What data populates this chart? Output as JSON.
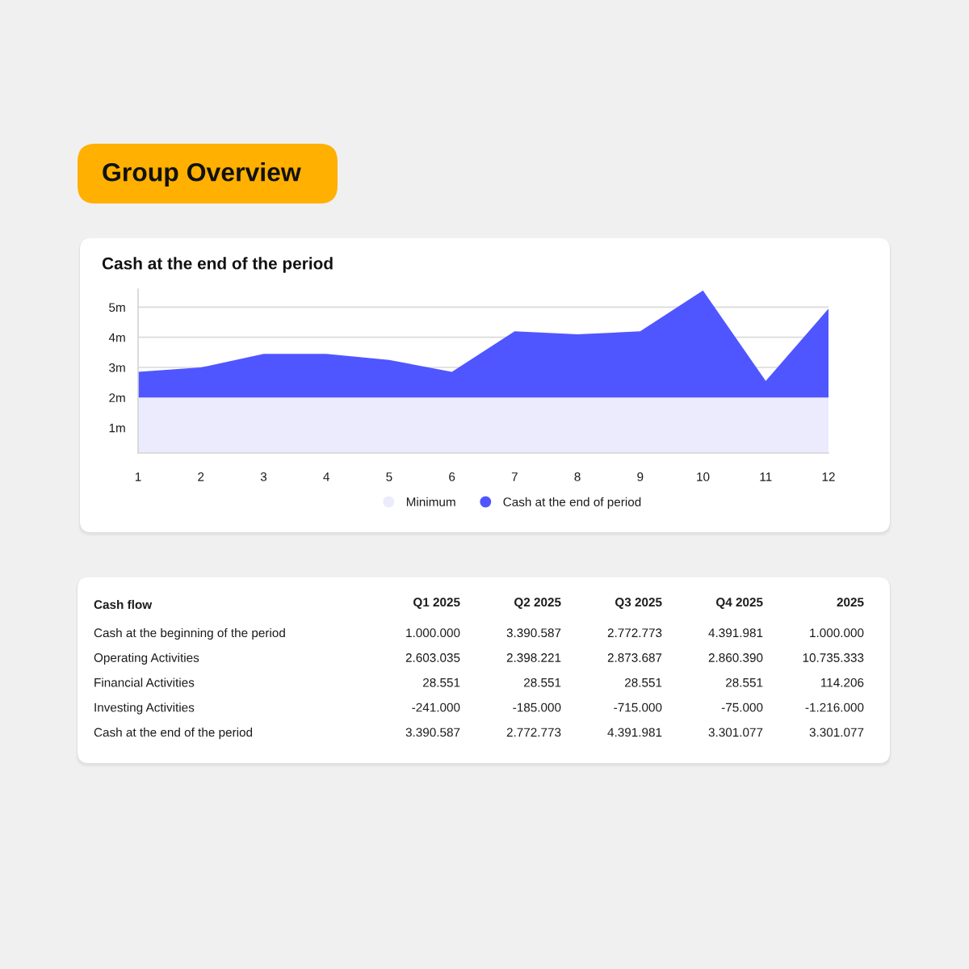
{
  "chart_data": [
    {
      "type": "area",
      "title": "Group Overview",
      "subtitle": "Cash at the end of the period",
      "categories": [
        "1",
        "2",
        "3",
        "4",
        "5",
        "6",
        "7",
        "8",
        "9",
        "10",
        "11",
        "12"
      ],
      "series": [
        {
          "name": "Minimum",
          "color": "#ebebfd",
          "values": [
            2,
            2,
            2,
            2,
            2,
            2,
            2,
            2,
            2,
            2,
            2,
            2
          ]
        },
        {
          "name": "Cash at the end of period",
          "color": "#5056ff",
          "values": [
            2.85,
            3.0,
            3.45,
            3.45,
            3.25,
            2.85,
            4.2,
            4.1,
            4.2,
            5.55,
            2.55,
            4.95
          ]
        }
      ],
      "ylim": [
        0.16,
        5.6
      ],
      "yticks": [
        {
          "value": 1,
          "label": "1m"
        },
        {
          "value": 2,
          "label": "2m"
        },
        {
          "value": 3,
          "label": "3m"
        },
        {
          "value": 4,
          "label": "4m"
        },
        {
          "value": 5,
          "label": "5m"
        }
      ],
      "grid": "y",
      "legend": "bottom"
    },
    {
      "type": "other",
      "title": "Cash flow",
      "categories": [
        "Q1 2025",
        "Q2 2025",
        "Q3 2025",
        "Q4 2025",
        "2025"
      ],
      "y_categories": [
        "Cash at the beginning of the period",
        "Operating Activities",
        "Financial Activities",
        "Investing Activities",
        "Cash at the end of the period"
      ],
      "cell_labels": [
        [
          "1.000.000",
          "3.390.587",
          "2.772.773",
          "4.391.981",
          "1.000.000"
        ],
        [
          "2.603.035",
          "2.398.221",
          "2.873.687",
          "2.860.390",
          "10.735.333"
        ],
        [
          "28.551",
          "28.551",
          "28.551",
          "28.551",
          "114.206"
        ],
        [
          "-241.000",
          "-185.000",
          "-715.000",
          "-75.000",
          "-1.216.000"
        ],
        [
          "3.390.587",
          "2.772.773",
          "4.391.981",
          "3.301.077",
          "3.301.077"
        ]
      ]
    }
  ]
}
